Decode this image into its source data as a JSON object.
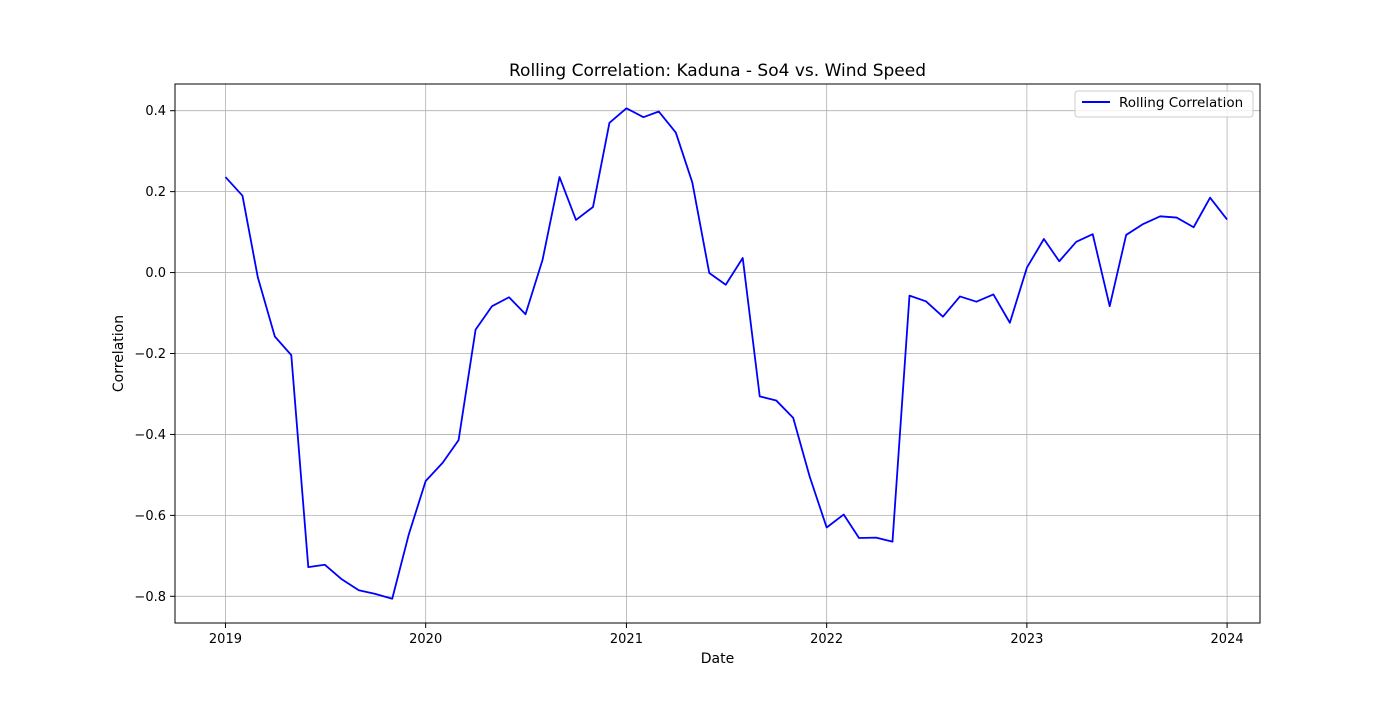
{
  "chart_data": {
    "type": "line",
    "title": "Rolling Correlation: Kaduna - So4 vs. Wind Speed",
    "xlabel": "Date",
    "ylabel": "Correlation",
    "x_ticks": [
      "2019",
      "2020",
      "2021",
      "2022",
      "2023",
      "2024"
    ],
    "y_ticks": [
      "−0.8",
      "−0.6",
      "−0.4",
      "−0.2",
      "0.0",
      "0.2",
      "0.4"
    ],
    "xlim": [
      "2018-10-01",
      "2024-03-01"
    ],
    "ylim": [
      -0.866,
      0.466
    ],
    "grid": true,
    "legend_position": "top-right",
    "series": [
      {
        "name": "Rolling Correlation",
        "color": "#0000ff",
        "x": [
          "2019-01-01",
          "2019-02-01",
          "2019-03-01",
          "2019-04-01",
          "2019-05-01",
          "2019-06-01",
          "2019-07-01",
          "2019-08-01",
          "2019-09-01",
          "2019-10-01",
          "2019-11-01",
          "2019-12-01",
          "2020-01-01",
          "2020-02-01",
          "2020-03-01",
          "2020-04-01",
          "2020-05-01",
          "2020-06-01",
          "2020-07-01",
          "2020-08-01",
          "2020-09-01",
          "2020-10-01",
          "2020-11-01",
          "2020-12-01",
          "2021-01-01",
          "2021-02-01",
          "2021-03-01",
          "2021-04-01",
          "2021-05-01",
          "2021-06-01",
          "2021-07-01",
          "2021-08-01",
          "2021-09-01",
          "2021-10-01",
          "2021-11-01",
          "2021-12-01",
          "2022-01-01",
          "2022-02-01",
          "2022-03-01",
          "2022-04-01",
          "2022-05-01",
          "2022-06-01",
          "2022-07-01",
          "2022-08-01",
          "2022-09-01",
          "2022-10-01",
          "2022-11-01",
          "2022-12-01",
          "2023-01-01",
          "2023-02-01",
          "2023-03-01",
          "2023-04-01",
          "2023-05-01",
          "2023-06-01",
          "2023-07-01",
          "2023-08-01",
          "2023-09-01",
          "2023-10-01",
          "2023-11-01",
          "2023-12-01",
          "2024-01-01"
        ],
        "y": [
          0.236,
          0.19,
          -0.012,
          -0.158,
          -0.204,
          -0.728,
          -0.722,
          -0.758,
          -0.785,
          -0.794,
          -0.806,
          -0.648,
          -0.515,
          -0.47,
          -0.414,
          -0.141,
          -0.083,
          -0.061,
          -0.103,
          0.031,
          0.236,
          0.13,
          0.162,
          0.37,
          0.406,
          0.384,
          0.398,
          0.346,
          0.223,
          -0.001,
          -0.03,
          0.036,
          -0.306,
          -0.316,
          -0.359,
          -0.504,
          -0.63,
          -0.598,
          -0.656,
          -0.655,
          -0.665,
          -0.057,
          -0.071,
          -0.109,
          -0.059,
          -0.072,
          -0.054,
          -0.124,
          0.012,
          0.083,
          0.028,
          0.076,
          0.095,
          -0.083,
          0.093,
          0.12,
          0.139,
          0.136,
          0.112,
          0.185,
          0.131
        ]
      }
    ]
  }
}
